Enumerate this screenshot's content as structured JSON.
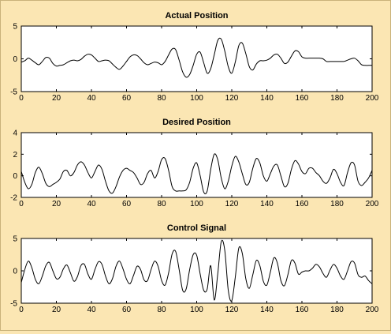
{
  "figure": {
    "background": "#fbe6b3",
    "plot_background": "#ffffff",
    "line_color": "#000000"
  },
  "chart_data": [
    {
      "type": "line",
      "title": "Actual Position",
      "xlim": [
        0,
        200
      ],
      "ylim": [
        -5,
        5
      ],
      "xticks": [
        0,
        20,
        40,
        60,
        80,
        100,
        120,
        140,
        160,
        180,
        200
      ],
      "yticks": [
        -5,
        0,
        5
      ],
      "grid": false,
      "series": [
        {
          "x": [
            0,
            2,
            4,
            6,
            8,
            10,
            12,
            14,
            16,
            18,
            20,
            22,
            24,
            26,
            28,
            30,
            32,
            34,
            36,
            38,
            40,
            42,
            44,
            46,
            48,
            50,
            52,
            54,
            56,
            58,
            60,
            62,
            64,
            66,
            68,
            70,
            72,
            74,
            76,
            78,
            80,
            82,
            84,
            86,
            88,
            90,
            92,
            94,
            96,
            98,
            100,
            102,
            104,
            106,
            108,
            110,
            112,
            114,
            116,
            118,
            120,
            122,
            124,
            126,
            128,
            130,
            132,
            134,
            136,
            138,
            140,
            142,
            144,
            146,
            148,
            150,
            152,
            154,
            156,
            158,
            160,
            162,
            164,
            166,
            168,
            170,
            172,
            174,
            176,
            178,
            180,
            182,
            184,
            186,
            188,
            190,
            192,
            194,
            196,
            198,
            200
          ],
          "y": [
            -0.5,
            -0.3,
            0.1,
            -0.2,
            -0.6,
            -0.9,
            -0.4,
            0.2,
            0.1,
            -0.7,
            -1.1,
            -1.0,
            -0.9,
            -0.6,
            -0.3,
            -0.2,
            -0.3,
            -0.1,
            0.4,
            0.7,
            0.6,
            0.1,
            -0.4,
            -0.3,
            -0.2,
            -0.3,
            -0.8,
            -1.3,
            -1.6,
            -1.1,
            -0.4,
            0.3,
            0.6,
            0.5,
            0.0,
            -0.6,
            -0.9,
            -0.7,
            -0.5,
            -0.6,
            -0.9,
            -0.4,
            0.6,
            1.5,
            1.4,
            -0.2,
            -2.0,
            -2.8,
            -2.4,
            -1.0,
            0.7,
            1.0,
            -0.6,
            -2.2,
            -1.5,
            0.6,
            2.8,
            3.0,
            1.2,
            -1.2,
            -2.2,
            -0.5,
            2.0,
            2.4,
            0.8,
            -1.2,
            -1.7,
            -0.8,
            -0.3,
            -0.3,
            -0.2,
            0.1,
            0.6,
            0.7,
            0.1,
            -0.7,
            -0.5,
            0.4,
            1.2,
            1.1,
            0.3,
            0.1,
            0.1,
            0.1,
            0.1,
            0.1,
            0.0,
            -0.4,
            -0.4,
            -0.4,
            -0.4,
            -0.4,
            -0.4,
            -0.2,
            0.0,
            0.1,
            -0.3,
            -0.9,
            -1.0,
            -1.0,
            -1.0
          ]
        }
      ]
    },
    {
      "type": "line",
      "title": "Desired Position",
      "xlim": [
        0,
        200
      ],
      "ylim": [
        -2,
        4
      ],
      "xticks": [
        0,
        20,
        40,
        60,
        80,
        100,
        120,
        140,
        160,
        180,
        200
      ],
      "yticks": [
        -2,
        0,
        2,
        4
      ],
      "grid": false,
      "series": [
        {
          "x": [
            0,
            2,
            4,
            6,
            8,
            10,
            12,
            14,
            16,
            18,
            20,
            22,
            24,
            26,
            28,
            30,
            32,
            34,
            36,
            38,
            40,
            42,
            44,
            46,
            48,
            50,
            52,
            54,
            56,
            58,
            60,
            62,
            64,
            66,
            68,
            70,
            72,
            74,
            76,
            78,
            80,
            82,
            84,
            86,
            88,
            90,
            92,
            94,
            96,
            98,
            100,
            102,
            104,
            106,
            108,
            110,
            112,
            114,
            116,
            118,
            120,
            122,
            124,
            126,
            128,
            130,
            132,
            134,
            136,
            138,
            140,
            142,
            144,
            146,
            148,
            150,
            152,
            154,
            156,
            158,
            160,
            162,
            164,
            166,
            168,
            170,
            172,
            174,
            176,
            178,
            180,
            182,
            184,
            186,
            188,
            190,
            192,
            194,
            196,
            198,
            200
          ],
          "y": [
            0.4,
            -0.6,
            -1.2,
            -0.8,
            0.3,
            0.8,
            0.2,
            -0.7,
            -1.0,
            -0.8,
            -0.6,
            -0.3,
            0.4,
            0.5,
            0.0,
            0.3,
            1.0,
            1.3,
            1.0,
            0.3,
            -0.2,
            0.4,
            1.0,
            0.6,
            -0.5,
            -1.4,
            -1.6,
            -1.0,
            -0.1,
            0.5,
            0.7,
            0.5,
            0.3,
            -0.2,
            -0.8,
            -0.6,
            0.2,
            0.5,
            -0.2,
            0.4,
            1.5,
            1.6,
            0.5,
            -1.0,
            -1.4,
            -1.4,
            -1.4,
            -1.3,
            -0.6,
            0.7,
            1.2,
            0.0,
            -1.5,
            -1.4,
            0.6,
            2.0,
            1.5,
            -0.2,
            -1.2,
            -0.5,
            0.9,
            1.8,
            1.3,
            0.2,
            -0.8,
            -0.6,
            0.7,
            1.6,
            1.2,
            0.0,
            -0.5,
            0.2,
            0.9,
            1.0,
            0.0,
            -1.0,
            -0.7,
            0.6,
            1.4,
            1.1,
            0.4,
            0.2,
            0.7,
            0.7,
            0.3,
            0.0,
            -0.5,
            -0.7,
            -0.2,
            0.6,
            0.2,
            -0.6,
            -0.9,
            0.3,
            1.2,
            1.0,
            -0.5,
            -0.9,
            -0.6,
            -0.2,
            0.5
          ]
        }
      ]
    },
    {
      "type": "line",
      "title": "Control Signal",
      "xlim": [
        0,
        200
      ],
      "ylim": [
        -5,
        5
      ],
      "xticks": [
        0,
        20,
        40,
        60,
        80,
        100,
        120,
        140,
        160,
        180,
        200
      ],
      "yticks": [
        -5,
        0,
        5
      ],
      "grid": false,
      "series": [
        {
          "x": [
            0,
            2,
            4,
            6,
            8,
            10,
            12,
            14,
            16,
            18,
            20,
            22,
            24,
            26,
            28,
            30,
            32,
            34,
            36,
            38,
            40,
            42,
            44,
            46,
            48,
            50,
            52,
            54,
            56,
            58,
            60,
            62,
            64,
            66,
            68,
            70,
            72,
            74,
            76,
            78,
            80,
            82,
            84,
            86,
            88,
            90,
            92,
            94,
            96,
            98,
            100,
            102,
            104,
            106,
            108,
            110,
            112,
            114,
            116,
            118,
            120,
            122,
            124,
            126,
            128,
            130,
            132,
            134,
            136,
            138,
            140,
            142,
            144,
            146,
            148,
            150,
            152,
            154,
            156,
            158,
            160,
            162,
            164,
            166,
            168,
            170,
            172,
            174,
            176,
            178,
            180,
            182,
            184,
            186,
            188,
            190,
            192,
            194,
            196,
            198,
            200
          ],
          "y": [
            -1.8,
            0.2,
            1.5,
            0.5,
            -1.3,
            -2.0,
            -0.8,
            0.8,
            1.3,
            0.0,
            -1.2,
            -1.0,
            0.3,
            0.9,
            -0.3,
            -1.6,
            -0.9,
            0.8,
            1.0,
            -0.5,
            -1.3,
            0.2,
            1.4,
            1.0,
            -0.8,
            -2.0,
            -1.2,
            0.7,
            1.5,
            0.3,
            -1.3,
            -2.0,
            -0.7,
            0.7,
            0.2,
            -1.4,
            -1.5,
            0.2,
            1.5,
            0.7,
            -1.5,
            -2.2,
            -0.3,
            2.6,
            3.0,
            0.2,
            -3.0,
            -2.8,
            0.2,
            2.5,
            2.4,
            -0.5,
            -3.0,
            -2.8,
            0.8,
            -4.5,
            -0.5,
            4.5,
            3.2,
            -3.0,
            -4.6,
            -1.0,
            3.5,
            2.7,
            -1.2,
            -2.7,
            -0.6,
            1.6,
            0.8,
            -1.6,
            -2.2,
            -0.2,
            2.0,
            1.2,
            -1.5,
            -2.3,
            -0.6,
            1.6,
            1.2,
            -0.5,
            -0.2,
            0.0,
            0.0,
            0.4,
            1.0,
            0.6,
            -0.4,
            -1.0,
            0.1,
            1.0,
            0.4,
            -0.8,
            -1.3,
            0.0,
            1.4,
            1.2,
            -0.6,
            -1.0,
            -0.8,
            -1.5,
            -2.0
          ]
        }
      ]
    }
  ]
}
